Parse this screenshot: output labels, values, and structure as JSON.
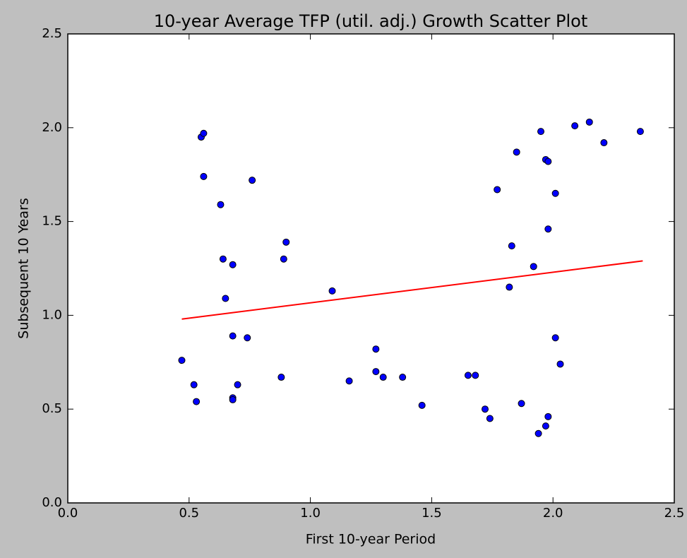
{
  "chart_data": {
    "type": "scatter",
    "title": "10-year Average TFP (util. adj.) Growth Scatter Plot",
    "xlabel": "First 10-year Period",
    "ylabel": "Subsequent 10 Years",
    "xlim": [
      0,
      2.5
    ],
    "ylim": [
      0,
      2.5
    ],
    "xticks": [
      {
        "value": 0,
        "label": "0.0"
      },
      0.5,
      {
        "value": 1,
        "label": "1.0"
      },
      1.5,
      {
        "value": 2,
        "label": "2.0"
      },
      2.5
    ],
    "yticks": [
      {
        "value": 0,
        "label": "0.0"
      },
      0.5,
      {
        "value": 1,
        "label": "1.0"
      },
      1.5,
      {
        "value": 2,
        "label": "2.0"
      },
      2.5
    ],
    "grid": false,
    "color": "#0000ff",
    "x": [
      0.47,
      0.52,
      0.53,
      0.55,
      0.56,
      0.56,
      0.63,
      0.64,
      0.65,
      0.68,
      0.68,
      0.68,
      0.68,
      0.7,
      0.74,
      0.76,
      0.88,
      0.89,
      0.9,
      1.09,
      1.16,
      1.27,
      1.27,
      1.3,
      1.38,
      1.46,
      1.65,
      1.68,
      1.72,
      1.74,
      1.77,
      1.82,
      1.83,
      1.85,
      1.87,
      1.92,
      1.94,
      1.95,
      1.97,
      1.98,
      1.98,
      1.97,
      1.98,
      2.01,
      2.01,
      2.03,
      2.09,
      2.15,
      2.21,
      2.36
    ],
    "y": [
      0.76,
      0.63,
      0.54,
      1.95,
      1.97,
      1.74,
      1.59,
      1.3,
      1.09,
      1.27,
      0.89,
      0.56,
      0.55,
      0.63,
      0.88,
      1.72,
      0.67,
      1.3,
      1.39,
      1.13,
      0.65,
      0.82,
      0.7,
      0.67,
      0.67,
      0.52,
      0.68,
      0.68,
      0.5,
      0.45,
      1.67,
      1.15,
      1.37,
      1.87,
      0.53,
      1.26,
      0.37,
      1.98,
      1.83,
      1.82,
      1.46,
      0.41,
      0.46,
      1.65,
      0.88,
      0.74,
      2.01,
      2.03,
      1.92,
      1.98
    ],
    "trend_line": {
      "x": [
        0.47,
        2.37
      ],
      "y": [
        0.98,
        1.29
      ],
      "color": "#ff0000"
    }
  }
}
